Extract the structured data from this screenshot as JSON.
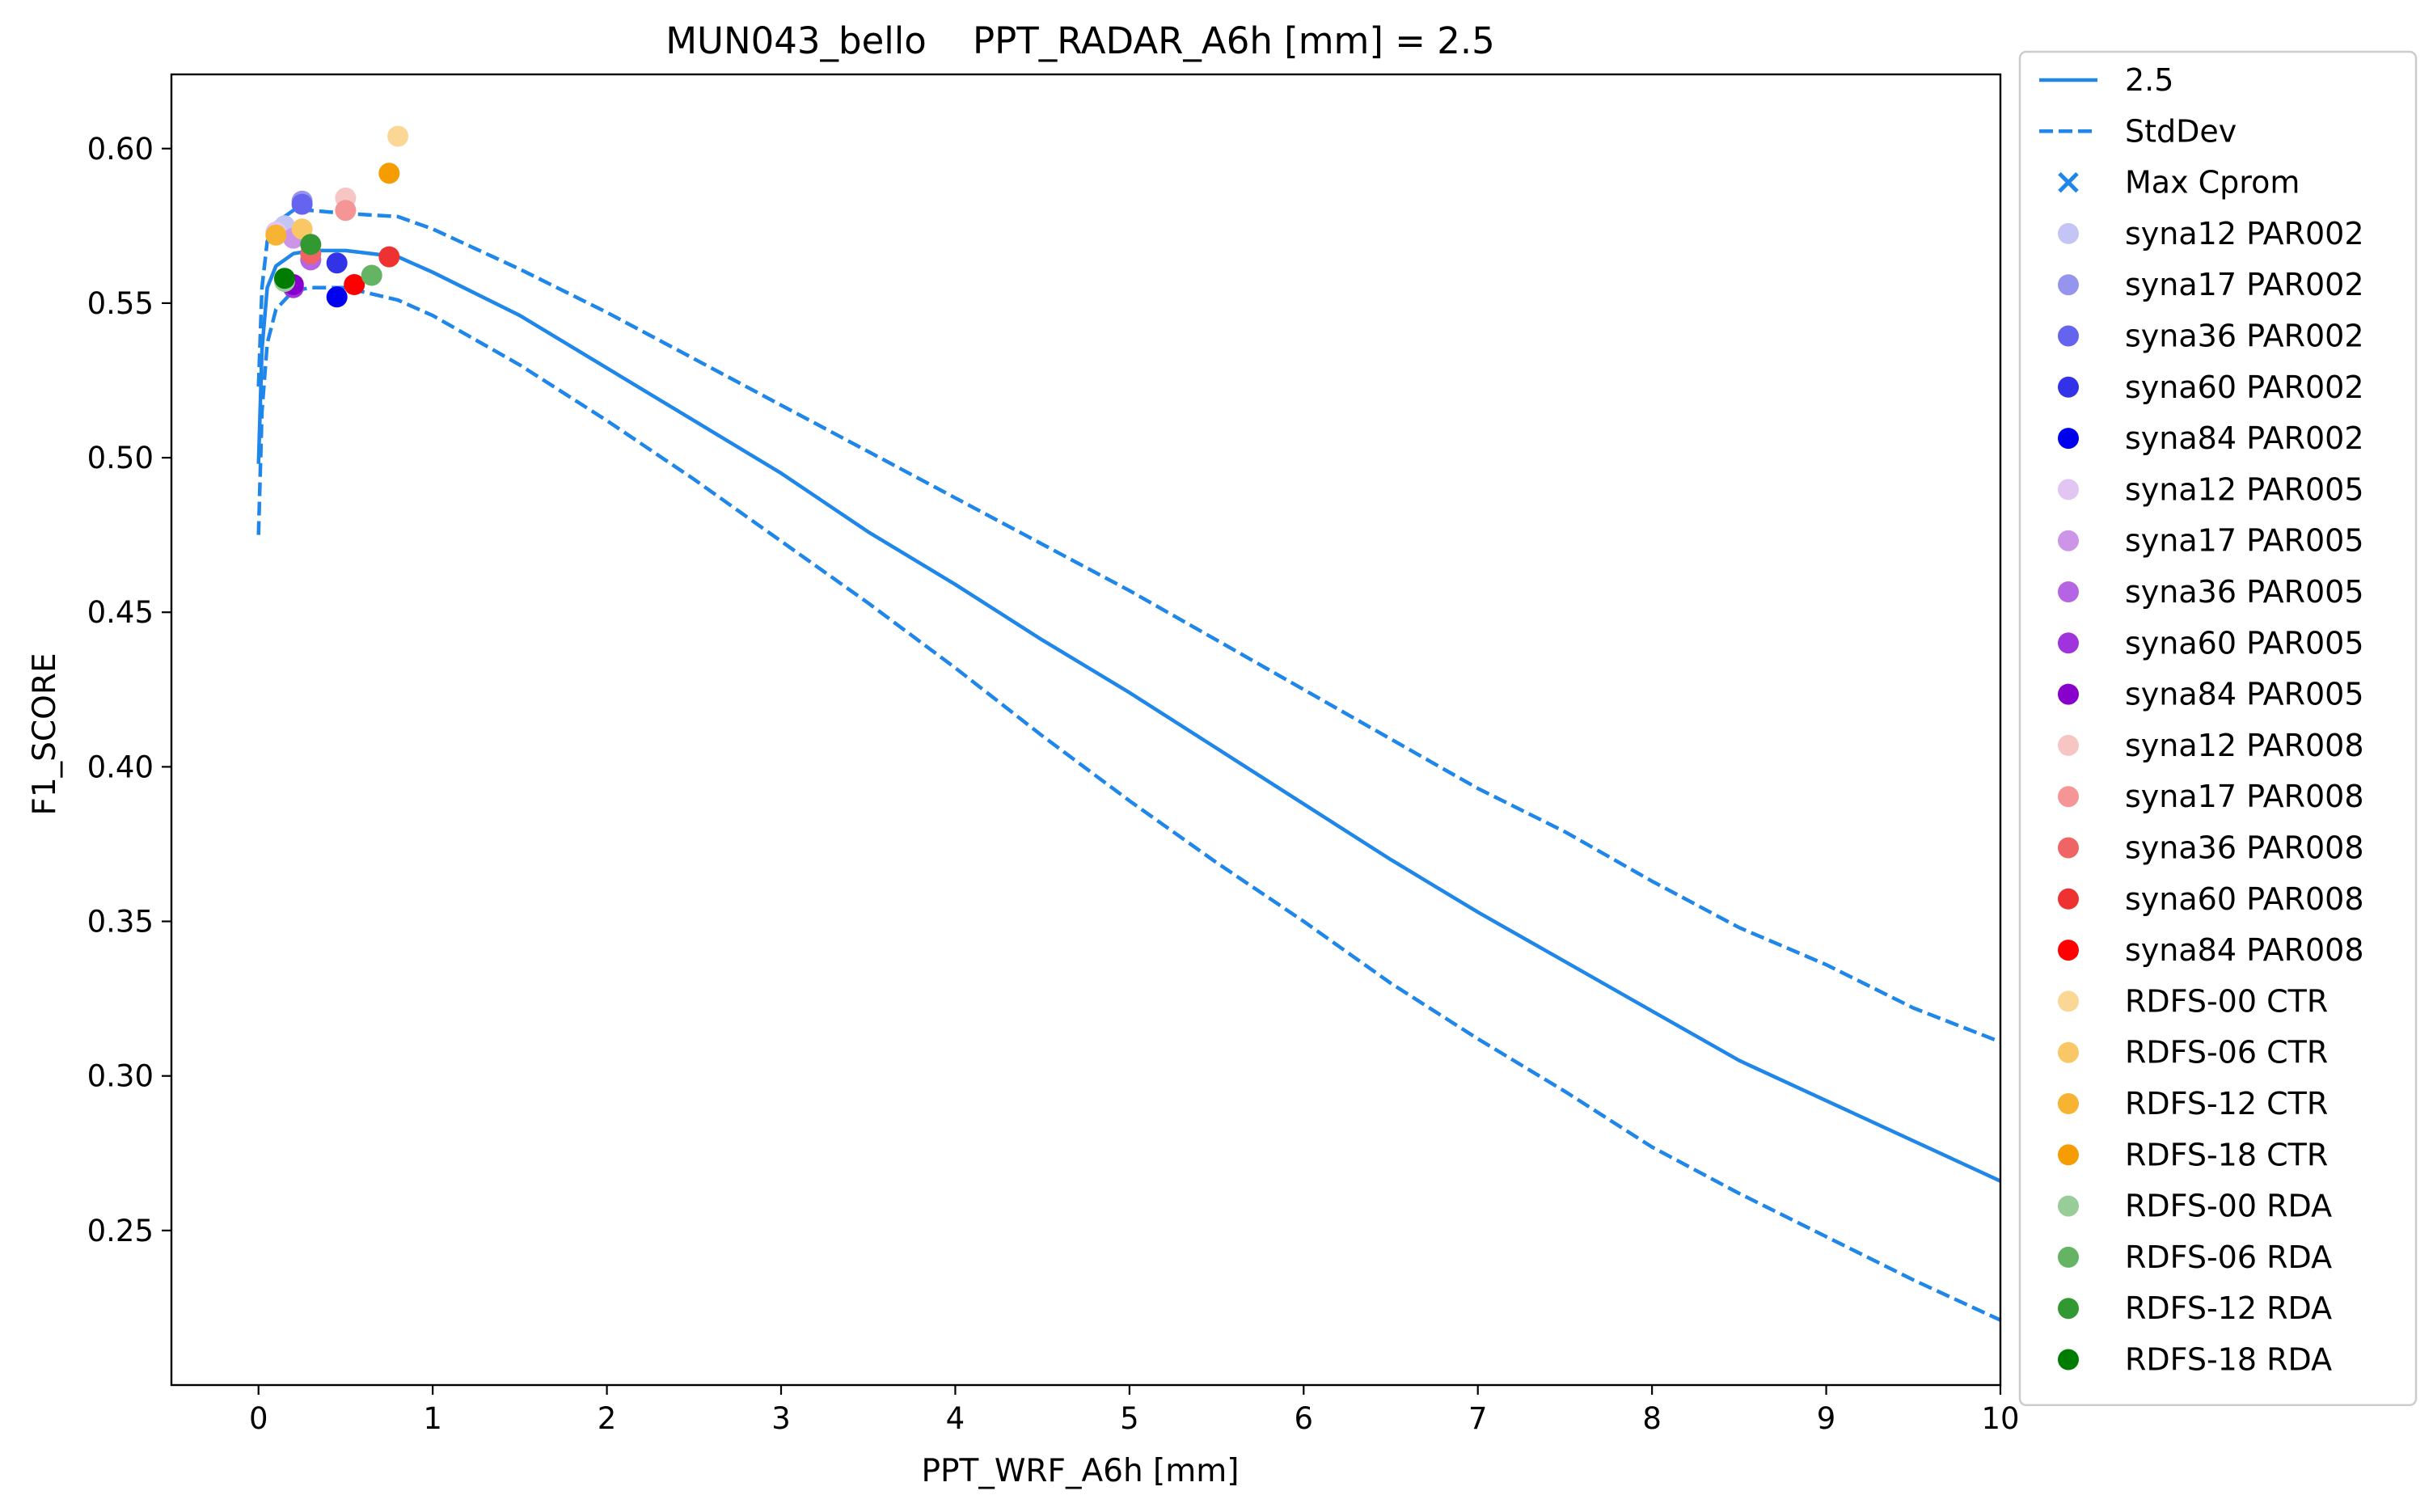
{
  "chart_data": {
    "type": "line",
    "title": "MUN043_bello    PPT_RADAR_A6h [mm] = 2.5",
    "xlabel": "PPT_WRF_A6h [mm]",
    "ylabel": "F1_SCORE",
    "xlim": [
      -0.5,
      10
    ],
    "ylim": [
      0.2,
      0.624
    ],
    "xticks": [
      0,
      1,
      2,
      3,
      4,
      5,
      6,
      7,
      8,
      9,
      10
    ],
    "yticks": [
      0.25,
      0.3,
      0.35,
      0.4,
      0.45,
      0.5,
      0.55,
      0.6
    ],
    "xtick_labels": [
      "0",
      "1",
      "2",
      "3",
      "4",
      "5",
      "6",
      "7",
      "8",
      "9",
      "10"
    ],
    "ytick_labels": [
      "0.25",
      "0.30",
      "0.35",
      "0.40",
      "0.45",
      "0.50",
      "0.55",
      "0.60"
    ],
    "grid": false,
    "legend_position": "outside-right",
    "lines": [
      {
        "name": "2.5",
        "style": "solid",
        "color": "#1f86ea",
        "points": [
          [
            0,
            0.498
          ],
          [
            0.02,
            0.535
          ],
          [
            0.05,
            0.555
          ],
          [
            0.1,
            0.562
          ],
          [
            0.2,
            0.566
          ],
          [
            0.3,
            0.567
          ],
          [
            0.5,
            0.567
          ],
          [
            0.8,
            0.565
          ],
          [
            1.0,
            0.56
          ],
          [
            1.5,
            0.546
          ],
          [
            2.0,
            0.529
          ],
          [
            2.5,
            0.512
          ],
          [
            3.0,
            0.495
          ],
          [
            3.5,
            0.476
          ],
          [
            4.0,
            0.459
          ],
          [
            4.5,
            0.441
          ],
          [
            5.0,
            0.424
          ],
          [
            5.5,
            0.406
          ],
          [
            6.0,
            0.388
          ],
          [
            6.5,
            0.37
          ],
          [
            7.0,
            0.353
          ],
          [
            7.5,
            0.337
          ],
          [
            8.0,
            0.321
          ],
          [
            8.5,
            0.305
          ],
          [
            9.0,
            0.292
          ],
          [
            9.5,
            0.279
          ],
          [
            10.0,
            0.266
          ]
        ]
      },
      {
        "name": "StdDev",
        "style": "dashed",
        "color": "#1f86ea",
        "points": [
          [
            0,
            0.523
          ],
          [
            0.02,
            0.555
          ],
          [
            0.05,
            0.57
          ],
          [
            0.1,
            0.576
          ],
          [
            0.2,
            0.58
          ],
          [
            0.3,
            0.58
          ],
          [
            0.5,
            0.579
          ],
          [
            0.8,
            0.578
          ],
          [
            1.0,
            0.574
          ],
          [
            1.5,
            0.561
          ],
          [
            2.0,
            0.547
          ],
          [
            2.5,
            0.532
          ],
          [
            3.0,
            0.517
          ],
          [
            3.5,
            0.502
          ],
          [
            4.0,
            0.487
          ],
          [
            4.5,
            0.472
          ],
          [
            5.0,
            0.457
          ],
          [
            5.5,
            0.441
          ],
          [
            6.0,
            0.425
          ],
          [
            6.5,
            0.409
          ],
          [
            7.0,
            0.393
          ],
          [
            7.5,
            0.379
          ],
          [
            8.0,
            0.363
          ],
          [
            8.5,
            0.348
          ],
          [
            9.0,
            0.336
          ],
          [
            9.5,
            0.322
          ],
          [
            10.0,
            0.311
          ]
        ]
      },
      {
        "name": "",
        "style": "dashed",
        "color": "#1f86ea",
        "points": [
          [
            0,
            0.475
          ],
          [
            0.02,
            0.515
          ],
          [
            0.05,
            0.537
          ],
          [
            0.1,
            0.548
          ],
          [
            0.2,
            0.554
          ],
          [
            0.3,
            0.555
          ],
          [
            0.5,
            0.555
          ],
          [
            0.8,
            0.551
          ],
          [
            1.0,
            0.546
          ],
          [
            1.5,
            0.53
          ],
          [
            2.0,
            0.512
          ],
          [
            2.5,
            0.493
          ],
          [
            3.0,
            0.473
          ],
          [
            3.5,
            0.453
          ],
          [
            4.0,
            0.432
          ],
          [
            4.5,
            0.41
          ],
          [
            5.0,
            0.389
          ],
          [
            5.5,
            0.369
          ],
          [
            6.0,
            0.35
          ],
          [
            6.5,
            0.33
          ],
          [
            7.0,
            0.312
          ],
          [
            7.5,
            0.295
          ],
          [
            8.0,
            0.277
          ],
          [
            8.5,
            0.262
          ],
          [
            9.0,
            0.248
          ],
          [
            9.5,
            0.234
          ],
          [
            10.0,
            0.221
          ]
        ]
      }
    ],
    "scatter": [
      {
        "name": "syna12 PAR002",
        "color": "#c5c5f5",
        "x": 0.15,
        "y": 0.575
      },
      {
        "name": "syna17 PAR002",
        "color": "#9595ee",
        "x": 0.25,
        "y": 0.583
      },
      {
        "name": "syna36 PAR002",
        "color": "#6464ee",
        "x": 0.25,
        "y": 0.582
      },
      {
        "name": "syna60 PAR002",
        "color": "#3232e8",
        "x": 0.45,
        "y": 0.563
      },
      {
        "name": "syna84 PAR002",
        "color": "#0000f0",
        "x": 0.45,
        "y": 0.552
      },
      {
        "name": "syna12 PAR005",
        "color": "#e1c5f3",
        "x": 0.1,
        "y": 0.573
      },
      {
        "name": "syna17 PAR005",
        "color": "#cc95e8",
        "x": 0.2,
        "y": 0.571
      },
      {
        "name": "syna36 PAR005",
        "color": "#b564e3",
        "x": 0.3,
        "y": 0.564
      },
      {
        "name": "syna60 PAR005",
        "color": "#9f34dd",
        "x": 0.2,
        "y": 0.555
      },
      {
        "name": "syna84 PAR005",
        "color": "#8800cc",
        "x": 0.2,
        "y": 0.556
      },
      {
        "name": "syna12 PAR008",
        "color": "#f8c5c5",
        "x": 0.5,
        "y": 0.584
      },
      {
        "name": "syna17 PAR008",
        "color": "#f59595",
        "x": 0.5,
        "y": 0.58
      },
      {
        "name": "syna36 PAR008",
        "color": "#ef6464",
        "x": 0.3,
        "y": 0.566
      },
      {
        "name": "syna60 PAR008",
        "color": "#ee3232",
        "x": 0.75,
        "y": 0.565
      },
      {
        "name": "syna84 PAR008",
        "color": "#ff0000",
        "x": 0.55,
        "y": 0.556
      },
      {
        "name": "RDFS-00 CTR",
        "color": "#fbd795",
        "x": 0.8,
        "y": 0.604
      },
      {
        "name": "RDFS-06 CTR",
        "color": "#f9c766",
        "x": 0.25,
        "y": 0.574
      },
      {
        "name": "RDFS-12 CTR",
        "color": "#f7b332",
        "x": 0.1,
        "y": 0.572
      },
      {
        "name": "RDFS-18 CTR",
        "color": "#f59d00",
        "x": 0.75,
        "y": 0.592
      },
      {
        "name": "RDFS-00 RDA",
        "color": "#98cc98",
        "x": 0.15,
        "y": 0.557
      },
      {
        "name": "RDFS-06 RDA",
        "color": "#64b464",
        "x": 0.65,
        "y": 0.559
      },
      {
        "name": "RDFS-12 RDA",
        "color": "#329832",
        "x": 0.3,
        "y": 0.569
      },
      {
        "name": "RDFS-18 RDA",
        "color": "#007d00",
        "x": 0.15,
        "y": 0.558
      }
    ],
    "legend": [
      {
        "label": "2.5",
        "kind": "line-solid",
        "color": "#1f86ea"
      },
      {
        "label": "StdDev",
        "kind": "line-dashed",
        "color": "#1f86ea"
      },
      {
        "label": "Max Cprom",
        "kind": "cross",
        "color": "#1f86ea"
      },
      {
        "label": "syna12 PAR002",
        "kind": "dot",
        "color": "#c5c5f5"
      },
      {
        "label": "syna17 PAR002",
        "kind": "dot",
        "color": "#9595ee"
      },
      {
        "label": "syna36 PAR002",
        "kind": "dot",
        "color": "#6464ee"
      },
      {
        "label": "syna60 PAR002",
        "kind": "dot",
        "color": "#3232e8"
      },
      {
        "label": "syna84 PAR002",
        "kind": "dot",
        "color": "#0000f0"
      },
      {
        "label": "syna12 PAR005",
        "kind": "dot",
        "color": "#e1c5f3"
      },
      {
        "label": "syna17 PAR005",
        "kind": "dot",
        "color": "#cc95e8"
      },
      {
        "label": "syna36 PAR005",
        "kind": "dot",
        "color": "#b564e3"
      },
      {
        "label": "syna60 PAR005",
        "kind": "dot",
        "color": "#9f34dd"
      },
      {
        "label": "syna84 PAR005",
        "kind": "dot",
        "color": "#8800cc"
      },
      {
        "label": "syna12 PAR008",
        "kind": "dot",
        "color": "#f8c5c5"
      },
      {
        "label": "syna17 PAR008",
        "kind": "dot",
        "color": "#f59595"
      },
      {
        "label": "syna36 PAR008",
        "kind": "dot",
        "color": "#ef6464"
      },
      {
        "label": "syna60 PAR008",
        "kind": "dot",
        "color": "#ee3232"
      },
      {
        "label": "syna84 PAR008",
        "kind": "dot",
        "color": "#ff0000"
      },
      {
        "label": " RDFS-00 CTR",
        "kind": "dot",
        "color": "#fbd795"
      },
      {
        "label": " RDFS-06 CTR",
        "kind": "dot",
        "color": "#f9c766"
      },
      {
        "label": " RDFS-12 CTR",
        "kind": "dot",
        "color": "#f7b332"
      },
      {
        "label": " RDFS-18 CTR",
        "kind": "dot",
        "color": "#f59d00"
      },
      {
        "label": " RDFS-00 RDA",
        "kind": "dot",
        "color": "#98cc98"
      },
      {
        "label": " RDFS-06 RDA",
        "kind": "dot",
        "color": "#64b464"
      },
      {
        "label": " RDFS-12 RDA",
        "kind": "dot",
        "color": "#329832"
      },
      {
        "label": " RDFS-18 RDA",
        "kind": "dot",
        "color": "#007d00"
      }
    ]
  }
}
